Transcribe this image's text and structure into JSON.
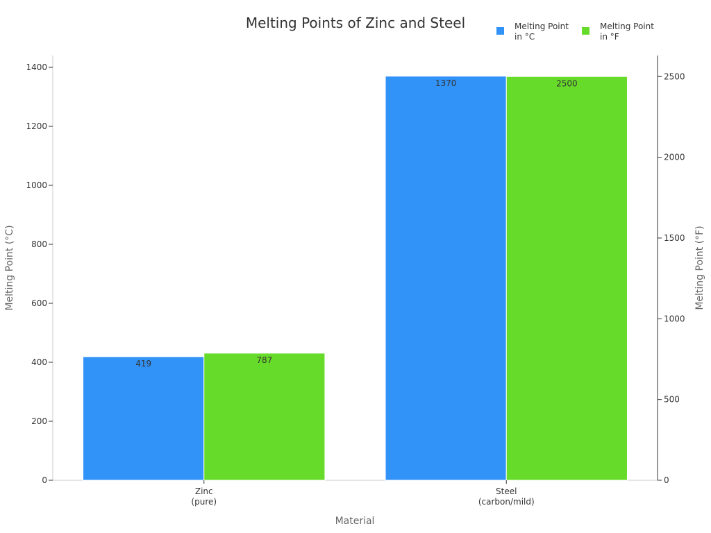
{
  "chart_data": {
    "type": "bar",
    "title": "Melting Points of Zinc and Steel",
    "xlabel": "Material",
    "ylabel_left": "Melting Point (°C)",
    "ylabel_right": "Melting Point (°F)",
    "categories": [
      [
        "Zinc",
        "(pure)"
      ],
      [
        "Steel",
        "(carbon/mild)"
      ]
    ],
    "ylim_left": [
      0,
      1440
    ],
    "ylim_right": [
      0,
      2630
    ],
    "yticks_left": [
      0,
      200,
      400,
      600,
      800,
      1000,
      1200,
      1400
    ],
    "yticks_right": [
      0,
      500,
      1000,
      1500,
      2000,
      2500
    ],
    "grid": false,
    "legend_position": "top-right",
    "series": [
      {
        "name": [
          "Melting Point",
          "in °C"
        ],
        "axis": "left",
        "color": "#3192F8",
        "values": [
          419,
          1370
        ],
        "labels": [
          "419",
          "1370"
        ]
      },
      {
        "name": [
          "Melting Point",
          "in °F"
        ],
        "axis": "right",
        "color": "#67DB29",
        "values": [
          787,
          2500
        ],
        "labels": [
          "787",
          "2500"
        ]
      }
    ]
  }
}
